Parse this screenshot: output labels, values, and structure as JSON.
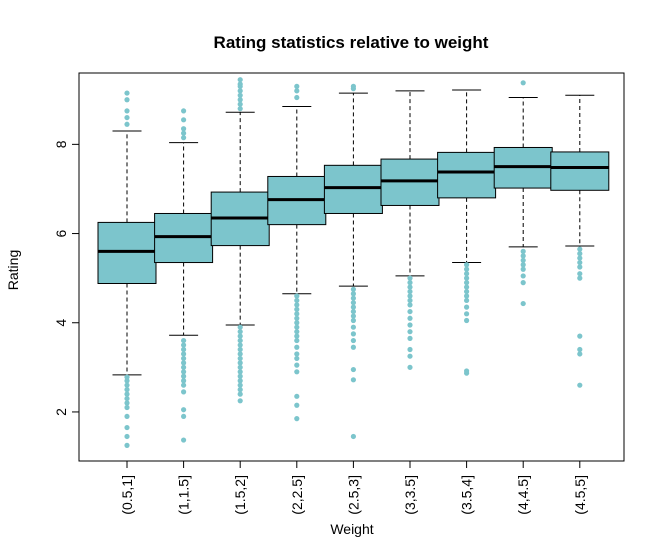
{
  "chart_data": {
    "type": "box",
    "title": "Rating statistics relative to weight",
    "xlabel": "Weight",
    "ylabel": "Rating",
    "ylim": [
      0.9,
      9.6
    ],
    "yticks": [
      2,
      4,
      6,
      8
    ],
    "grid": false,
    "box_color": "#7cc5cc",
    "outlier_color": "#7cc5cc",
    "categories": [
      "(0.5,1]",
      "(1,1.5]",
      "(1.5,2]",
      "(2,2.5]",
      "(2.5,3]",
      "(3,3.5]",
      "(3.5,4]",
      "(4,4.5]",
      "(4.5,5]"
    ],
    "boxes": [
      {
        "whisker_low": 2.83,
        "q1": 4.88,
        "median": 5.6,
        "q3": 6.25,
        "whisker_high": 8.3,
        "outliers": [
          1.25,
          1.45,
          1.65,
          1.9,
          2.1,
          2.2,
          2.3,
          2.4,
          2.5,
          2.6,
          2.7,
          2.78,
          8.45,
          8.6,
          8.75,
          9.0,
          9.15
        ]
      },
      {
        "whisker_low": 3.72,
        "q1": 5.35,
        "median": 5.93,
        "q3": 6.45,
        "whisker_high": 8.04,
        "outliers": [
          1.37,
          1.9,
          2.05,
          2.45,
          2.6,
          2.7,
          2.8,
          2.9,
          3.0,
          3.1,
          3.2,
          3.3,
          3.4,
          3.5,
          3.6,
          8.15,
          8.25,
          8.35,
          8.55,
          8.75
        ]
      },
      {
        "whisker_low": 3.95,
        "q1": 5.73,
        "median": 6.35,
        "q3": 6.93,
        "whisker_high": 8.72,
        "outliers": [
          2.25,
          2.4,
          2.5,
          2.6,
          2.7,
          2.8,
          2.9,
          3.0,
          3.1,
          3.2,
          3.3,
          3.4,
          3.5,
          3.6,
          3.7,
          3.8,
          3.9,
          8.8,
          8.9,
          9.0,
          9.1,
          9.2,
          9.3,
          9.35,
          9.45
        ]
      },
      {
        "whisker_low": 4.65,
        "q1": 6.2,
        "median": 6.76,
        "q3": 7.28,
        "whisker_high": 8.85,
        "outliers": [
          1.85,
          2.15,
          2.35,
          2.9,
          3.05,
          3.2,
          3.3,
          3.45,
          3.6,
          3.7,
          3.8,
          3.9,
          4.0,
          4.1,
          4.2,
          4.3,
          4.4,
          4.5,
          4.6,
          9.05,
          9.2,
          9.3
        ]
      },
      {
        "whisker_low": 4.82,
        "q1": 6.45,
        "median": 7.03,
        "q3": 7.53,
        "whisker_high": 9.15,
        "outliers": [
          1.45,
          2.72,
          2.95,
          3.45,
          3.6,
          3.75,
          3.9,
          4.05,
          4.15,
          4.25,
          4.35,
          4.45,
          4.55,
          4.65,
          4.75,
          9.25,
          9.3
        ]
      },
      {
        "whisker_low": 5.05,
        "q1": 6.63,
        "median": 7.18,
        "q3": 7.67,
        "whisker_high": 9.2,
        "outliers": [
          3.0,
          3.25,
          3.4,
          3.65,
          3.8,
          3.95,
          4.1,
          4.25,
          4.4,
          4.5,
          4.6,
          4.7,
          4.8,
          4.9,
          5.0
        ]
      },
      {
        "whisker_low": 5.35,
        "q1": 6.8,
        "median": 7.38,
        "q3": 7.82,
        "whisker_high": 9.22,
        "outliers": [
          2.87,
          2.92,
          4.05,
          4.2,
          4.35,
          4.5,
          4.6,
          4.7,
          4.8,
          4.9,
          5.0,
          5.1,
          5.2,
          5.3
        ]
      },
      {
        "whisker_low": 5.7,
        "q1": 7.02,
        "median": 7.5,
        "q3": 7.93,
        "whisker_high": 9.05,
        "outliers": [
          4.43,
          4.9,
          5.05,
          5.2,
          5.3,
          5.4,
          5.5,
          5.6,
          9.38
        ]
      },
      {
        "whisker_low": 5.72,
        "q1": 6.97,
        "median": 7.48,
        "q3": 7.83,
        "whisker_high": 9.1,
        "outliers": [
          2.6,
          3.3,
          3.4,
          3.7,
          5.0,
          5.1,
          5.25,
          5.35,
          5.45,
          5.55,
          5.65
        ]
      }
    ]
  }
}
